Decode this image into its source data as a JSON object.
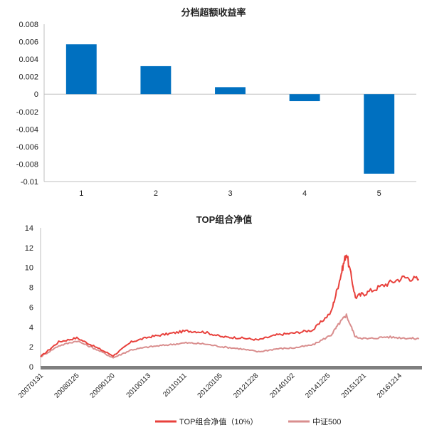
{
  "chart_data": [
    {
      "type": "bar",
      "title": "分档超额收益率",
      "categories": [
        "1",
        "2",
        "3",
        "4",
        "5"
      ],
      "values": [
        0.0057,
        0.0032,
        0.0008,
        -0.0008,
        -0.0091
      ],
      "ylim": [
        -0.01,
        0.008
      ],
      "yticks": [
        "0.008",
        "0.006",
        "0.004",
        "0.002",
        "0",
        "-0.002",
        "-0.004",
        "-0.006",
        "-0.008",
        "-0.01"
      ],
      "bar_color": "#0070C0",
      "grid": false,
      "xlabel": "",
      "ylabel": ""
    },
    {
      "type": "line",
      "title": "TOP组合净值",
      "ylim": [
        0,
        14
      ],
      "yticks": [
        "14",
        "12",
        "10",
        "8",
        "6",
        "4",
        "2",
        "0"
      ],
      "xticks": [
        "20070131",
        "20080125",
        "20090120",
        "20100113",
        "20110111",
        "20120105",
        "20121228",
        "20140102",
        "20141225",
        "20151221",
        "20161214"
      ],
      "x": [
        "2007-01",
        "2007-07",
        "2008-01",
        "2008-07",
        "2009-01",
        "2009-07",
        "2010-01",
        "2010-07",
        "2011-01",
        "2011-07",
        "2012-01",
        "2012-07",
        "2013-01",
        "2013-07",
        "2014-01",
        "2014-07",
        "2015-01",
        "2015-04",
        "2015-06",
        "2015-09",
        "2016-01",
        "2016-07",
        "2017-01",
        "2017-06"
      ],
      "series": [
        {
          "name": "TOP组合净值（10%）",
          "color": "#E8413C",
          "values": [
            1.0,
            2.5,
            2.9,
            2.0,
            1.1,
            2.5,
            3.0,
            3.3,
            3.6,
            3.5,
            3.0,
            2.9,
            2.7,
            3.2,
            3.4,
            3.7,
            5.5,
            9.0,
            11.5,
            7.0,
            7.5,
            8.3,
            9.0,
            8.8
          ]
        },
        {
          "name": "中证500",
          "color": "#D98E8E",
          "values": [
            1.0,
            2.1,
            2.6,
            1.8,
            0.9,
            1.7,
            2.0,
            2.2,
            2.4,
            2.3,
            2.0,
            1.8,
            1.5,
            1.8,
            1.9,
            2.2,
            3.2,
            4.5,
            5.2,
            3.0,
            2.8,
            3.0,
            2.9,
            2.8
          ]
        }
      ],
      "grid": false,
      "legend": "bottom",
      "xlabel": "",
      "ylabel": ""
    }
  ]
}
